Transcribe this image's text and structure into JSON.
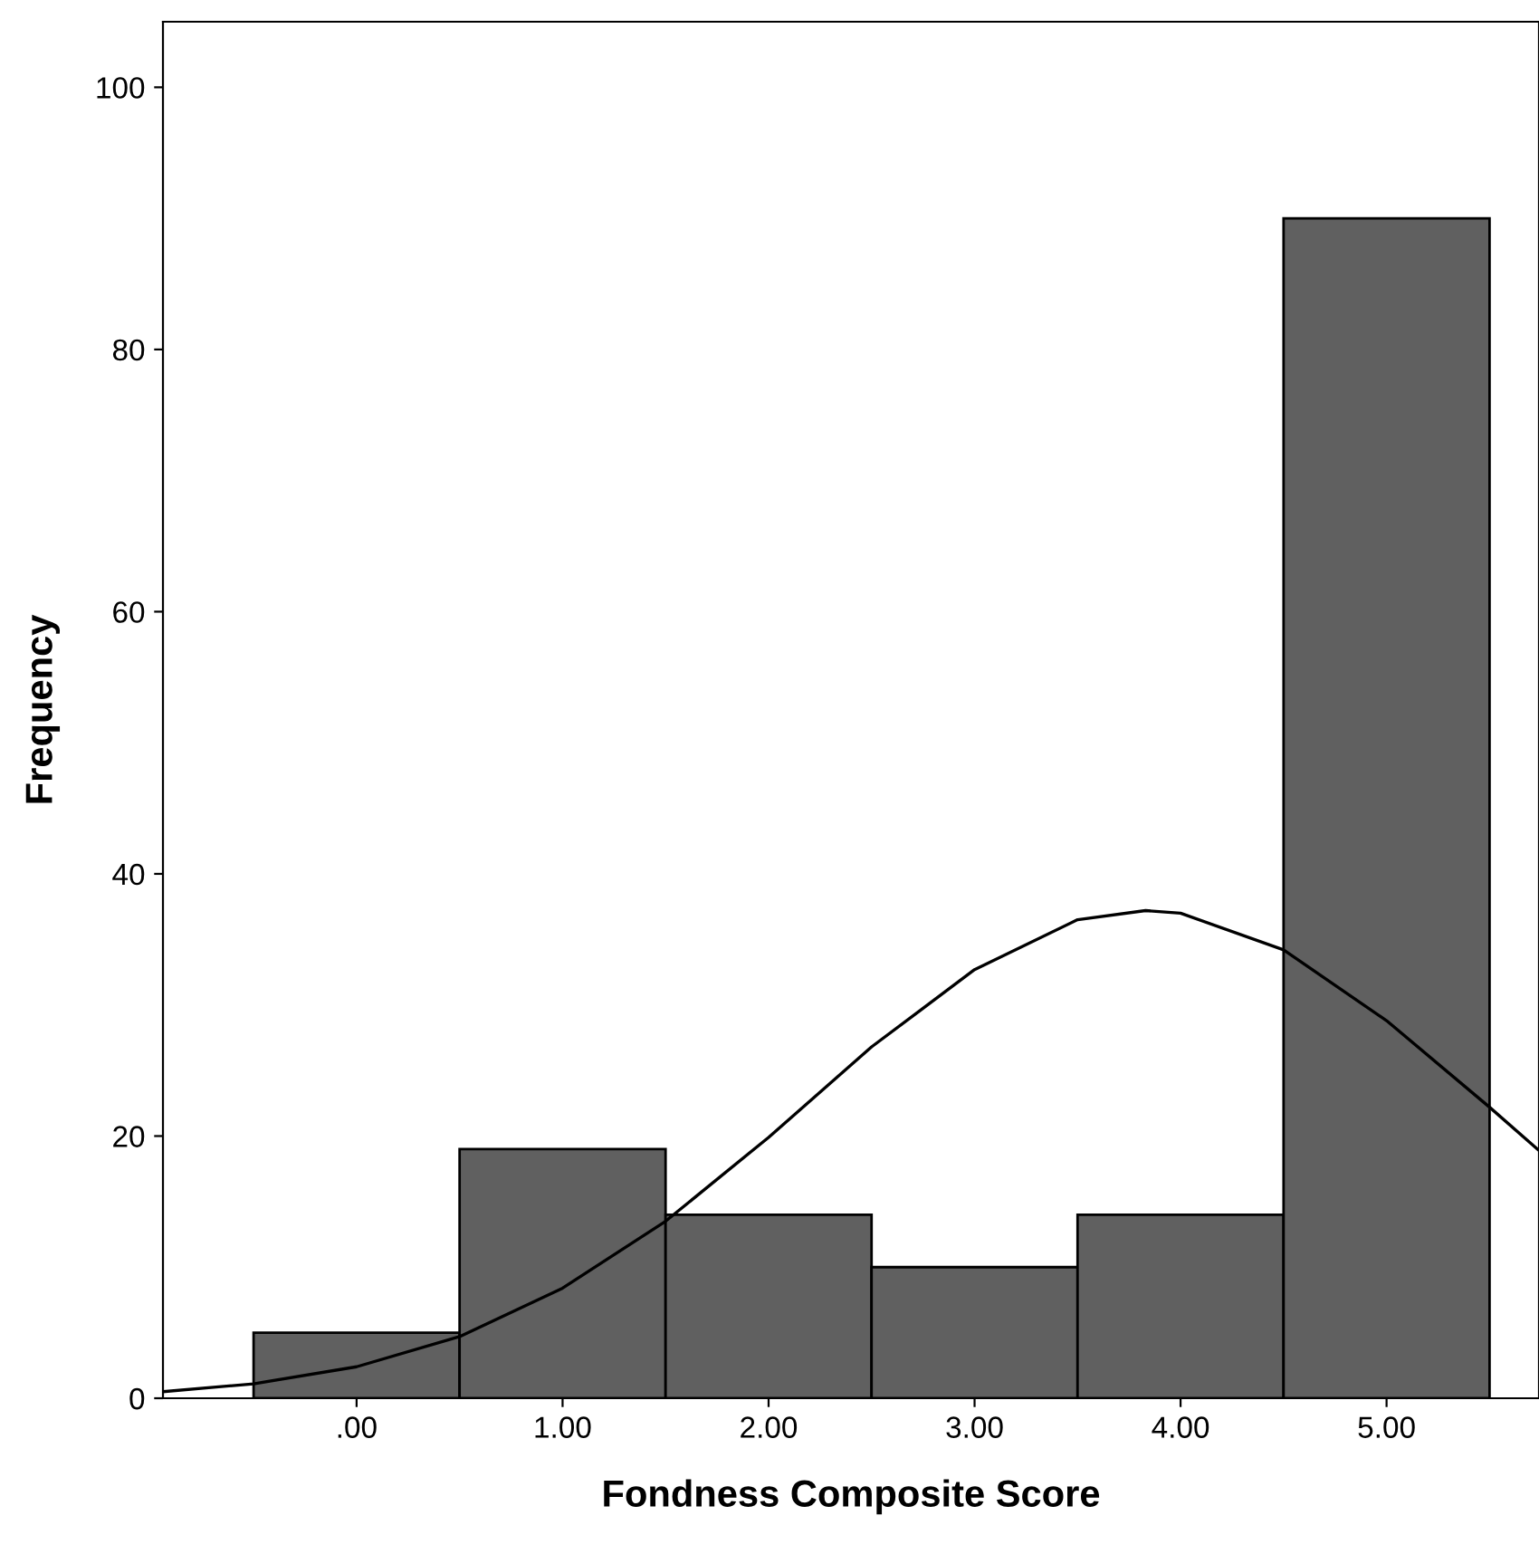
{
  "chart_data": {
    "type": "histogram",
    "xlabel": "Fondness Composite Score",
    "ylabel": "Frequency",
    "bins": [
      -0.5,
      0.5,
      1.5,
      2.5,
      3.5,
      4.5,
      5.5
    ],
    "values": [
      5,
      19,
      14,
      10,
      14,
      90
    ],
    "color": "#606060",
    "series": [
      {
        "type": "line",
        "color": "#000000",
        "x": [
          -0.94,
          -0.5,
          0,
          0.5,
          1.0,
          1.5,
          2.0,
          2.5,
          3.0,
          3.5,
          3.83,
          4.0,
          4.5,
          5.0,
          5.5,
          5.74
        ],
        "values": [
          0.5,
          1.1,
          2.4,
          4.7,
          8.4,
          13.5,
          19.9,
          26.8,
          32.7,
          36.5,
          37.2,
          37.0,
          34.2,
          28.8,
          22.2,
          18.9
        ]
      }
    ],
    "xlim": [
      -0.94,
      5.74
    ],
    "ylim": [
      0,
      105
    ],
    "xticks": [
      {
        "value": 0,
        "label": ".00"
      },
      {
        "value": 1,
        "label": "1.00"
      },
      {
        "value": 2,
        "label": "2.00"
      },
      {
        "value": 3,
        "label": "3.00"
      },
      {
        "value": 4,
        "label": "4.00"
      },
      {
        "value": 5,
        "label": "5.00"
      }
    ],
    "yticks": [
      0,
      20,
      40,
      60,
      80,
      100
    ],
    "grid": false
  }
}
